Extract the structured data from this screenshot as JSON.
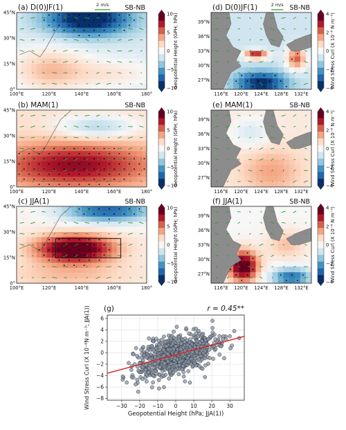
{
  "colors": {
    "land": "#8c8c8c",
    "vector": "#2f9a2f",
    "dot": "#000000",
    "box": "#111111",
    "scatter_fill": "#8a96a6",
    "fit_line": "#e02020"
  },
  "colormap": [
    "#08306b",
    "#2166ac",
    "#4393c3",
    "#92c5de",
    "#d1e5f0",
    "#f7f7f7",
    "#fddbc7",
    "#f4a582",
    "#d6604d",
    "#b2182b",
    "#67001f"
  ],
  "panels": [
    {
      "id": "a",
      "title": "(a) D(0)JF(1)",
      "tag": "SB-NB",
      "scale_label": "2 m/s",
      "lat_ticks": [
        "45°N",
        "30°N",
        "15°N",
        "0°"
      ],
      "lon_ticks": [
        "100°E",
        "120°E",
        "140°E",
        "160°E",
        "180°"
      ],
      "colorbar": {
        "ticks": [
          "10",
          "5",
          "0",
          "−5",
          "−10"
        ],
        "label": "Geopotential Height (GPH; hPa)"
      },
      "pattern": "a"
    },
    {
      "id": "b",
      "title": "(b) MAM(1)",
      "tag": "SB-NB",
      "lat_ticks": [
        "45°N",
        "30°N",
        "15°N",
        "0°"
      ],
      "lon_ticks": [
        "100°E",
        "120°E",
        "140°E",
        "160°E",
        "180°"
      ],
      "colorbar": {
        "ticks": [
          "10",
          "5",
          "0",
          "−5",
          "−10"
        ],
        "label": "Geopotential Height (GPH; hPa)"
      },
      "pattern": "b"
    },
    {
      "id": "c",
      "title": "(c) JJA(1)",
      "tag": "SB-NB",
      "lat_ticks": [
        "45°N",
        "30°N",
        "15°N",
        "0°"
      ],
      "lon_ticks": [
        "100°E",
        "120°E",
        "140°E",
        "160°E",
        "180°"
      ],
      "colorbar": {
        "ticks": [
          "10",
          "5",
          "0",
          "−5",
          "−10"
        ],
        "label": "Geopotential Height (GPH; hPa)"
      },
      "pattern": "c"
    },
    {
      "id": "d",
      "title": "(d) D(0)JF(1)",
      "tag": "SB-NB",
      "scale_label": "2 m/s",
      "lat_ticks": [
        "39°N",
        "36°N",
        "33°N",
        "30°N",
        "27°N"
      ],
      "lon_ticks": [
        "116°E",
        "120°E",
        "124°E",
        "128°E",
        "132°E"
      ],
      "colorbar": {
        "ticks": [
          "4",
          "2",
          "0",
          "−2",
          "−4"
        ],
        "label": "Wind Stress Curl (X 10⁻⁸ N m⁻³)"
      },
      "pattern": "d"
    },
    {
      "id": "e",
      "title": "(e) MAM(1)",
      "tag": "SB-NB",
      "lat_ticks": [
        "39°N",
        "36°N",
        "33°N",
        "30°N",
        "27°N"
      ],
      "lon_ticks": [
        "116°E",
        "120°E",
        "124°E",
        "128°E",
        "132°E"
      ],
      "colorbar": {
        "ticks": [
          "4",
          "2",
          "0",
          "−2",
          "−4"
        ],
        "label": "Wind Stress Curl (X 10⁻⁸ N m⁻³)"
      },
      "pattern": "e"
    },
    {
      "id": "f",
      "title": "(f) JJA(1)",
      "tag": "SB-NB",
      "lat_ticks": [
        "39°N",
        "36°N",
        "33°N",
        "30°N",
        "27°N"
      ],
      "lon_ticks": [
        "116°E",
        "120°E",
        "124°E",
        "128°E",
        "132°E"
      ],
      "colorbar": {
        "ticks": [
          "4",
          "2",
          "0",
          "−2",
          "−4"
        ],
        "label": "Wind Stress Curl (X 10⁻⁸ N m⁻³)"
      },
      "pattern": "f"
    }
  ],
  "chart_data": {
    "type": "scatter",
    "panel_label": "(g)",
    "annotation": "r = 0.45**",
    "xlabel": "Geopotential Height (hPa; JJA(1))",
    "ylabel": "Wind Stress Curl (X 10⁻⁸N m⁻³; JJA(1))",
    "xlim": [
      -38,
      38
    ],
    "ylim": [
      -8.3,
      6.6
    ],
    "xticks": [
      -30,
      -20,
      -10,
      0,
      10,
      20,
      30
    ],
    "yticks": [
      -8,
      -6,
      -4,
      -2,
      0,
      2,
      4,
      6
    ],
    "grid": true,
    "fit": {
      "slope": 0.085,
      "intercept": -0.35
    },
    "n_points": 850,
    "x_sd": 11,
    "residual_sd": 1.65
  }
}
